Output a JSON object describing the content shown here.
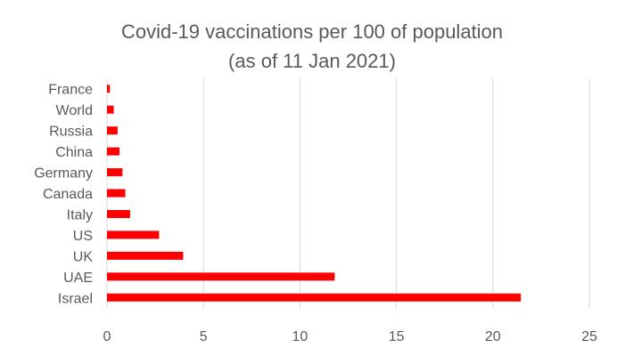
{
  "chart_data": {
    "type": "bar",
    "orientation": "horizontal",
    "title": "Covid-19 vaccinations per 100 of population",
    "subtitle": "(as of 11 Jan 2021)",
    "categories": [
      "France",
      "World",
      "Russia",
      "China",
      "Germany",
      "Canada",
      "Italy",
      "US",
      "UK",
      "UAE",
      "Israel"
    ],
    "values": [
      0.15,
      0.35,
      0.55,
      0.65,
      0.8,
      0.95,
      1.2,
      2.7,
      3.95,
      11.8,
      21.45
    ],
    "xlim": [
      0,
      25
    ],
    "xticks": [
      "0",
      "5",
      "10",
      "15",
      "20",
      "25"
    ],
    "xlabel": "",
    "ylabel": "",
    "grid": "vertical",
    "legend": "none",
    "bar_color": "#ff0000",
    "grid_color": "#d9d9d9",
    "text_color": "#595959"
  }
}
